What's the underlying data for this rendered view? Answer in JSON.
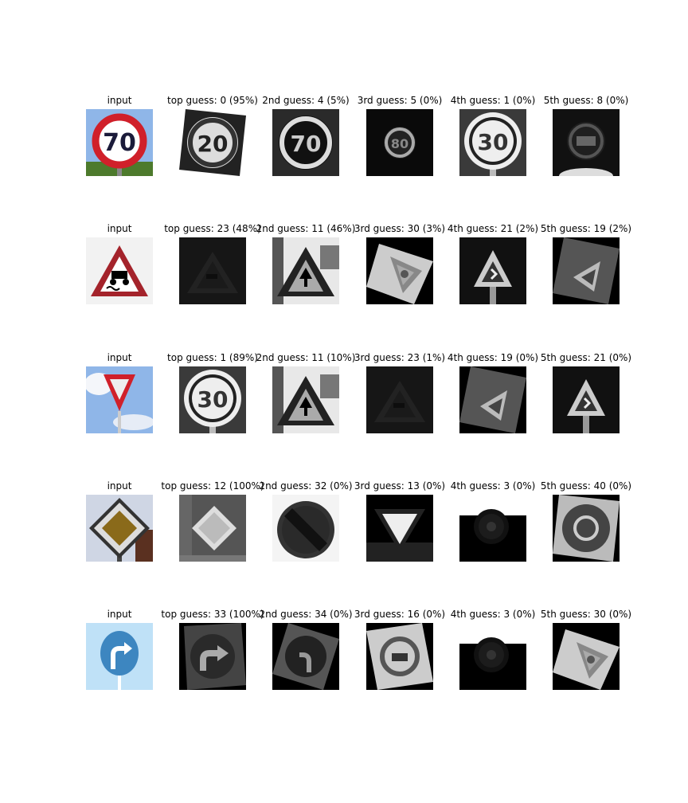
{
  "rows": [
    {
      "input_label": "input",
      "input_sign": "speed-limit-70-icon",
      "guesses": [
        {
          "label": "top guess: 0 (95%)",
          "sign": "speed-limit-20-icon"
        },
        {
          "label": "2nd guess: 4 (5%)",
          "sign": "speed-limit-70-icon"
        },
        {
          "label": "3rd guess: 5 (0%)",
          "sign": "speed-limit-80-icon"
        },
        {
          "label": "4th guess: 1 (0%)",
          "sign": "speed-limit-30-icon"
        },
        {
          "label": "5th guess: 8 (0%)",
          "sign": "speed-limit-120-icon"
        }
      ]
    },
    {
      "input_label": "input",
      "input_sign": "slippery-road-icon",
      "guesses": [
        {
          "label": "top guess: 23 (48%)",
          "sign": "slippery-road-icon"
        },
        {
          "label": "2nd guess: 11 (46%)",
          "sign": "right-of-way-icon"
        },
        {
          "label": "3rd guess: 30 (3%)",
          "sign": "ice-snow-icon"
        },
        {
          "label": "4th guess: 21 (2%)",
          "sign": "double-curve-icon"
        },
        {
          "label": "5th guess: 19 (2%)",
          "sign": "curve-left-icon"
        }
      ]
    },
    {
      "input_label": "input",
      "input_sign": "yield-icon",
      "guesses": [
        {
          "label": "top guess: 1 (89%)",
          "sign": "speed-limit-30-icon"
        },
        {
          "label": "2nd guess: 11 (10%)",
          "sign": "right-of-way-icon"
        },
        {
          "label": "3rd guess: 23 (1%)",
          "sign": "slippery-road-icon"
        },
        {
          "label": "4th guess: 19 (0%)",
          "sign": "curve-left-icon"
        },
        {
          "label": "5th guess: 21 (0%)",
          "sign": "double-curve-icon"
        }
      ]
    },
    {
      "input_label": "input",
      "input_sign": "priority-road-icon",
      "guesses": [
        {
          "label": "top guess: 12 (100%)",
          "sign": "priority-road-icon"
        },
        {
          "label": "2nd guess: 32 (0%)",
          "sign": "end-of-limits-icon"
        },
        {
          "label": "3rd guess: 13 (0%)",
          "sign": "yield-icon"
        },
        {
          "label": "4th guess: 3 (0%)",
          "sign": "speed-limit-60-icon"
        },
        {
          "label": "5th guess: 40 (0%)",
          "sign": "roundabout-icon"
        }
      ]
    },
    {
      "input_label": "input",
      "input_sign": "turn-right-ahead-icon",
      "guesses": [
        {
          "label": "top guess: 33 (100%)",
          "sign": "turn-right-ahead-icon"
        },
        {
          "label": "2nd guess: 34 (0%)",
          "sign": "turn-left-ahead-icon"
        },
        {
          "label": "3rd guess: 16 (0%)",
          "sign": "no-trucks-icon"
        },
        {
          "label": "4th guess: 3 (0%)",
          "sign": "speed-limit-60-icon"
        },
        {
          "label": "5th guess: 30 (0%)",
          "sign": "ice-snow-icon"
        }
      ]
    }
  ],
  "colors": {
    "sign_red": "#d0202a",
    "sign_blue": "#3d86c0",
    "sign_yellow": "#8a6a1a",
    "sky": "#8fb6e8"
  }
}
